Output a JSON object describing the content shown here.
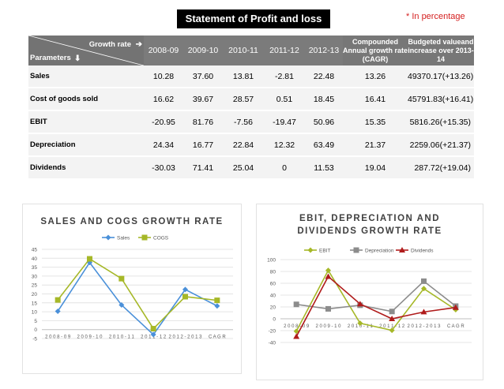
{
  "title": "Statement of Profit and loss",
  "note": "* In percentage",
  "table": {
    "header_growth_rate": "Growth rate",
    "header_parameters": "Parameters",
    "arrow_right": "➔",
    "arrow_down": "⬇",
    "years": [
      "2008-09",
      "2009-10",
      "2010-11",
      "2011-12",
      "2012-13"
    ],
    "cagr_header": "Compounded Annual growth rate (CAGR)",
    "budget_header": "Budgeted valueand increase over 2013-14",
    "rows": [
      {
        "label": "Sales",
        "values": [
          "10.28",
          "37.60",
          "13.81",
          "-2.81",
          "22.48"
        ],
        "cagr": "13.26",
        "budget": "49370.17(+13.26)"
      },
      {
        "label": "Cost of goods sold",
        "values": [
          "16.62",
          "39.67",
          "28.57",
          "0.51",
          "18.45"
        ],
        "cagr": "16.41",
        "budget": "45791.83(+16.41)"
      },
      {
        "label": "EBIT",
        "values": [
          "-20.95",
          "81.76",
          "-7.56",
          "-19.47",
          "50.96"
        ],
        "cagr": "15.35",
        "budget": "5816.26(+15.35)"
      },
      {
        "label": "Depreciation",
        "values": [
          "24.34",
          "16.77",
          "22.84",
          "12.32",
          "63.49"
        ],
        "cagr": "21.37",
        "budget": "2259.06(+21.37)"
      },
      {
        "label": "Dividends",
        "values": [
          "-30.03",
          "71.41",
          "25.04",
          "0",
          "11.53"
        ],
        "cagr": "19.04",
        "budget": "287.72(+19.04)"
      }
    ]
  },
  "chart_data": [
    {
      "type": "line",
      "title": "SALES AND COGS GROWTH RATE",
      "categories": [
        "2008-09",
        "2009-10",
        "2010-11",
        "2011-12",
        "2012-2013",
        "CAGR"
      ],
      "tick_labels": [
        "2 0 0 8 - 0 9",
        "2 0 0 9 - 1 0",
        "2 0 1 0 - 1 1",
        "2 0 1 1 - 1 2",
        "2 0 1 2 - 2 0 1 3",
        "C A G R"
      ],
      "ylim": [
        -5,
        45
      ],
      "yticks": [
        -5,
        0,
        5,
        10,
        15,
        20,
        25,
        30,
        35,
        40,
        45
      ],
      "legend_position": "top",
      "series": [
        {
          "name": "Sales",
          "color": "#4a90d9",
          "marker": "diamond",
          "values": [
            10.28,
            37.6,
            13.81,
            -2.81,
            22.48,
            13.26
          ]
        },
        {
          "name": "COGS",
          "color": "#a6b828",
          "marker": "square",
          "values": [
            16.62,
            39.67,
            28.57,
            0.51,
            18.45,
            16.41
          ]
        }
      ]
    },
    {
      "type": "line",
      "title": "EBIT, DEPRECIATION AND DIVIDENDS GROWTH RATE",
      "title_lines": [
        "EBIT, DEPRECIATION AND",
        "DIVIDENDS GROWTH RATE"
      ],
      "categories": [
        "2008-09",
        "2009-10",
        "2010-11",
        "2011-12",
        "2012-2013",
        "CAGR"
      ],
      "tick_labels": [
        "2 0 0 8 - 0 9",
        "2 0 0 9 - 1 0",
        "2 0 1 0 - 1 1",
        "2 0 1 1 - 1 2",
        "2 0 1 2 - 2 0 1 3",
        "C A G R"
      ],
      "ylim": [
        -40,
        100
      ],
      "yticks": [
        -40,
        -20,
        0,
        20,
        40,
        60,
        80,
        100
      ],
      "legend_position": "top",
      "series": [
        {
          "name": "EBIT",
          "color": "#a6b828",
          "marker": "diamond",
          "values": [
            -20.95,
            81.76,
            -7.56,
            -19.47,
            50.96,
            15.35
          ]
        },
        {
          "name": "Depreciation",
          "color": "#8c8c8c",
          "marker": "square",
          "values": [
            24.34,
            16.77,
            22.84,
            12.32,
            63.49,
            21.37
          ]
        },
        {
          "name": "Dividends",
          "color": "#b01c1c",
          "marker": "triangle",
          "values": [
            -30.03,
            71.41,
            25.04,
            0,
            11.53,
            19.04
          ]
        }
      ]
    }
  ]
}
